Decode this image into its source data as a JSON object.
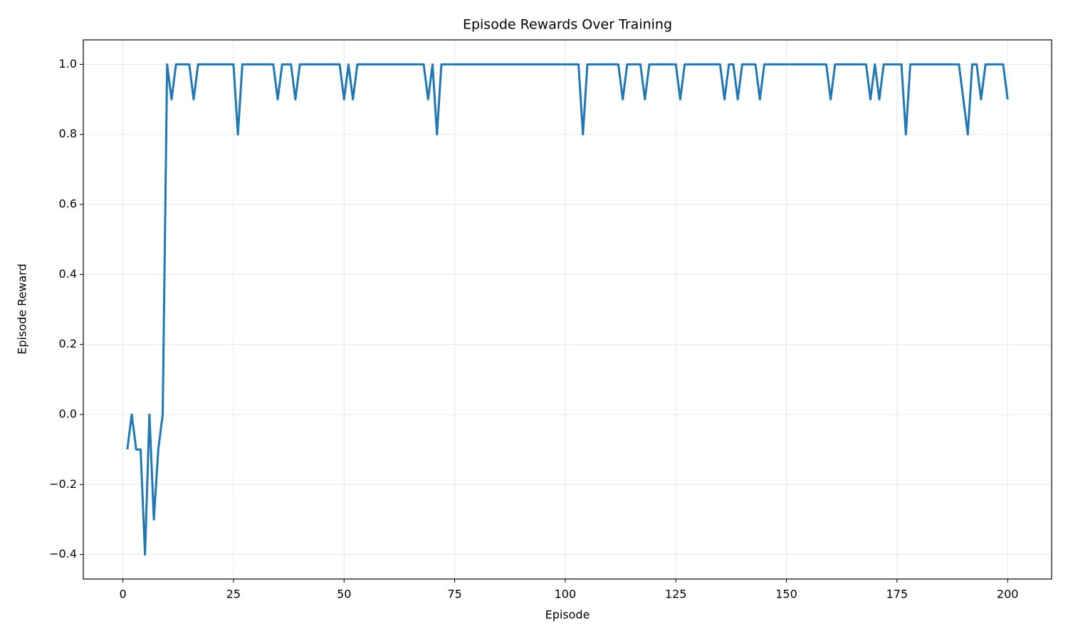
{
  "chart_data": {
    "type": "line",
    "title": "Episode Rewards Over Training",
    "xlabel": "Episode",
    "ylabel": "Episode Reward",
    "x": [
      1,
      2,
      3,
      4,
      5,
      6,
      7,
      8,
      9,
      10,
      11,
      12,
      13,
      14,
      15,
      16,
      17,
      18,
      19,
      20,
      21,
      22,
      23,
      24,
      25,
      26,
      27,
      28,
      29,
      30,
      31,
      32,
      33,
      34,
      35,
      36,
      37,
      38,
      39,
      40,
      41,
      42,
      43,
      44,
      45,
      46,
      47,
      48,
      49,
      50,
      51,
      52,
      53,
      54,
      55,
      56,
      57,
      58,
      59,
      60,
      61,
      62,
      63,
      64,
      65,
      66,
      67,
      68,
      69,
      70,
      71,
      72,
      73,
      74,
      75,
      76,
      77,
      78,
      79,
      80,
      81,
      82,
      83,
      84,
      85,
      86,
      87,
      88,
      89,
      90,
      91,
      92,
      93,
      94,
      95,
      96,
      97,
      98,
      99,
      100,
      101,
      102,
      103,
      104,
      105,
      106,
      107,
      108,
      109,
      110,
      111,
      112,
      113,
      114,
      115,
      116,
      117,
      118,
      119,
      120,
      121,
      122,
      123,
      124,
      125,
      126,
      127,
      128,
      129,
      130,
      131,
      132,
      133,
      134,
      135,
      136,
      137,
      138,
      139,
      140,
      141,
      142,
      143,
      144,
      145,
      146,
      147,
      148,
      149,
      150,
      151,
      152,
      153,
      154,
      155,
      156,
      157,
      158,
      159,
      160,
      161,
      162,
      163,
      164,
      165,
      166,
      167,
      168,
      169,
      170,
      171,
      172,
      173,
      174,
      175,
      176,
      177,
      178,
      179,
      180,
      181,
      182,
      183,
      184,
      185,
      186,
      187,
      188,
      189,
      190,
      191,
      192,
      193,
      194,
      195,
      196,
      197,
      198,
      199,
      200
    ],
    "series": [
      {
        "name": "Episode Reward",
        "color": "#1f77b4",
        "values": [
          -0.1,
          0.0,
          -0.1,
          -0.1,
          -0.4,
          0.0,
          -0.3,
          -0.1,
          0.0,
          1.0,
          0.9,
          1,
          1,
          1,
          1,
          0.9,
          1,
          1,
          1,
          1,
          1,
          1,
          1,
          1,
          1,
          0.8,
          1,
          1,
          1,
          1,
          1,
          1,
          1,
          1,
          0.9,
          1,
          1,
          1,
          0.9,
          1,
          1,
          1,
          1,
          1,
          1,
          1,
          1,
          1,
          1,
          0.9,
          1,
          0.9,
          1,
          1,
          1,
          1,
          1,
          1,
          1,
          1,
          1,
          1,
          1,
          1,
          1,
          1,
          1,
          1,
          0.9,
          1,
          0.8,
          1,
          1,
          1,
          1,
          1,
          1,
          1,
          1,
          1,
          1,
          1,
          1,
          1,
          1,
          1,
          1,
          1,
          1,
          1,
          1,
          1,
          1,
          1,
          1,
          1,
          1,
          1,
          1,
          1,
          1,
          1,
          1,
          0.8,
          1,
          1,
          1,
          1,
          1,
          1,
          1,
          1,
          0.9,
          1,
          1,
          1,
          1,
          0.9,
          1,
          1,
          1,
          1,
          1,
          1,
          1,
          0.9,
          1,
          1,
          1,
          1,
          1,
          1,
          1,
          1,
          1,
          0.9,
          1,
          1,
          0.9,
          1,
          1,
          1,
          1,
          0.9,
          1,
          1,
          1,
          1,
          1,
          1,
          1,
          1,
          1,
          1,
          1,
          1,
          1,
          1,
          1,
          0.9,
          1,
          1,
          1,
          1,
          1,
          1,
          1,
          1,
          0.9,
          1,
          0.9,
          1,
          1,
          1,
          1,
          1,
          0.8,
          1,
          1,
          1,
          1,
          1,
          1,
          1,
          1,
          1,
          1,
          1,
          1,
          0.9,
          0.8,
          1,
          1,
          0.9,
          1,
          1,
          1,
          1,
          1,
          0.9
        ]
      }
    ],
    "xlim": [
      -8.95,
      209.95
    ],
    "xticks": [
      0,
      25,
      50,
      75,
      100,
      125,
      150,
      175,
      200
    ],
    "ylim": [
      -0.47,
      1.07
    ],
    "yticks": [
      {
        "value": -0.4,
        "label": "−0.4"
      },
      {
        "value": -0.2,
        "label": "−0.2"
      },
      {
        "value": 0.0,
        "label": "0.0"
      },
      {
        "value": 0.2,
        "label": "0.2"
      },
      {
        "value": 0.4,
        "label": "0.4"
      },
      {
        "value": 0.6,
        "label": "0.6"
      },
      {
        "value": 0.8,
        "label": "0.8"
      },
      {
        "value": 1.0,
        "label": "1.0"
      }
    ],
    "grid": true
  }
}
